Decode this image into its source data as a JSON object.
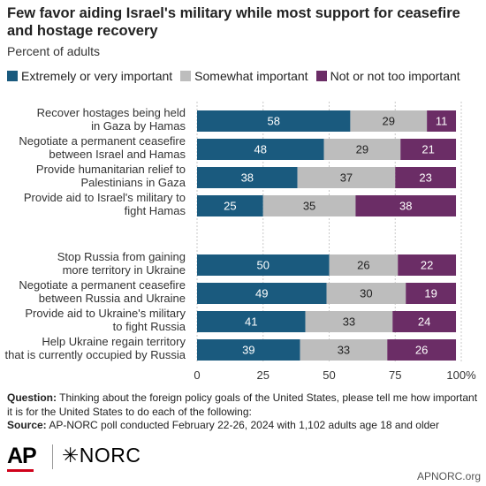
{
  "header": {
    "title": "Few favor aiding Israel's military while most support for ceasefire and hostage recovery",
    "subtitle": "Percent of adults"
  },
  "legend": [
    {
      "label": "Extremely or very important",
      "color": "#1a5a7e"
    },
    {
      "label": "Somewhat important",
      "color": "#bdbdbd"
    },
    {
      "label": "Not or not too important",
      "color": "#6b2d66"
    }
  ],
  "chart_data": {
    "type": "bar",
    "orientation": "horizontal",
    "stacked": true,
    "categories": [
      [
        "Recover hostages being held",
        "in Gaza by Hamas"
      ],
      [
        "Negotiate a permanent ceasefire",
        "between Israel and Hamas"
      ],
      [
        "Provide humanitarian relief to",
        "Palestinians in Gaza"
      ],
      [
        "Provide aid to Israel's military to",
        "fight Hamas"
      ],
      [
        "Stop Russia from gaining",
        "more territory in Ukraine"
      ],
      [
        "Negotiate a permanent ceasefire",
        "between Russia and Ukraine"
      ],
      [
        "Provide aid to Ukraine's military",
        "to fight Russia"
      ],
      [
        "Help Ukraine regain territory",
        "that is currently occupied by Russia"
      ]
    ],
    "series": [
      {
        "name": "Extremely or very important",
        "color": "#1a5a7e",
        "values": [
          58,
          48,
          38,
          25,
          50,
          49,
          41,
          39
        ]
      },
      {
        "name": "Somewhat important",
        "color": "#bdbdbd",
        "values": [
          29,
          29,
          37,
          35,
          26,
          30,
          33,
          33
        ]
      },
      {
        "name": "Not or not too important",
        "color": "#6b2d66",
        "values": [
          11,
          21,
          23,
          38,
          22,
          19,
          24,
          26
        ]
      }
    ],
    "groups": [
      [
        0,
        1,
        2,
        3
      ],
      [
        4,
        5,
        6,
        7
      ]
    ],
    "xlim": [
      0,
      100
    ],
    "xticks": [
      "0",
      "25",
      "50",
      "75",
      "100%"
    ],
    "grid": true,
    "legend_position": "top"
  },
  "notes": {
    "question_label": "Question:",
    "question_text": "Thinking about the foreign policy goals of the United States, please tell me how important it is for the United States to do each of the following:",
    "source_label": "Source:",
    "source_text": "AP-NORC poll conducted February 22-26, 2024 with 1,102 adults age 18 and older"
  },
  "logos": {
    "ap": "AP",
    "norc": "✳NORC"
  },
  "credit": "APNORC.org"
}
